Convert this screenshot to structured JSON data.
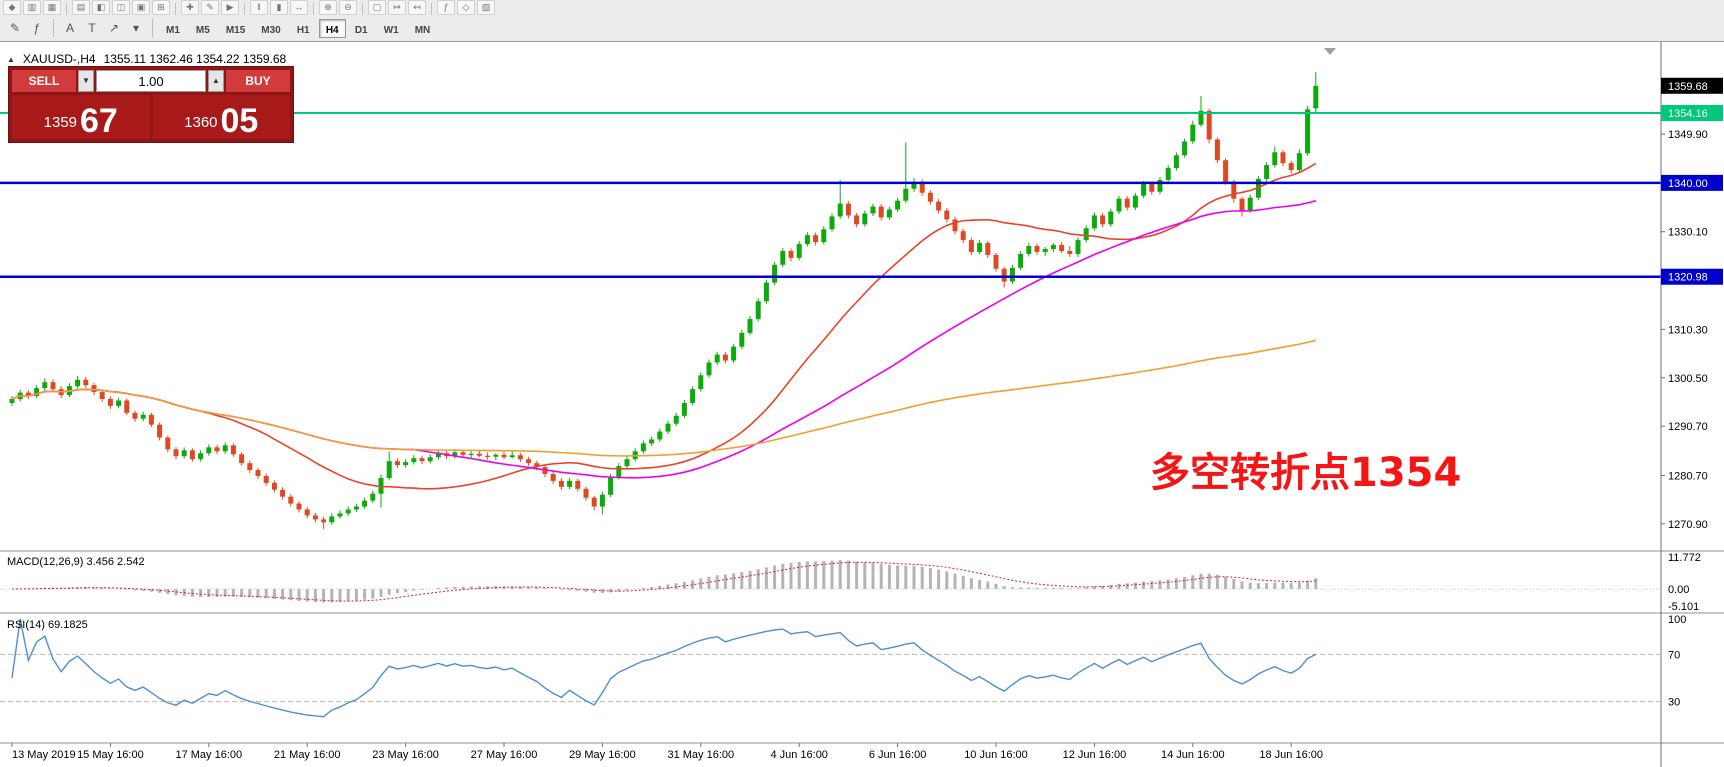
{
  "colors": {
    "candle_up": "#0caa0c",
    "candle_down": "#dd4a22",
    "ma_fast": "#e8442a",
    "ma_mid": "#ee00ee",
    "ma_slow": "#f0a030",
    "line_green": "#00c97c",
    "line_blue": "#0000cd",
    "rsi": "#4f8fd0",
    "macd_hist": "#b4b4b4",
    "macd_signal": "#d42222",
    "annotation": "#f51515",
    "current_price_box": "#000000"
  },
  "toolbar": {
    "row1_icons": [
      {
        "name": "metaquotes-logo-icon",
        "glyph": "◆"
      },
      {
        "name": "new-chart-icon",
        "glyph": "▥"
      },
      {
        "name": "chart-profiles-icon",
        "glyph": "▦"
      },
      {
        "sep": true
      },
      {
        "name": "market-watch-icon",
        "glyph": "▤"
      },
      {
        "name": "data-window-icon",
        "glyph": "◧"
      },
      {
        "name": "navigator-icon",
        "glyph": "◫"
      },
      {
        "name": "terminal-icon",
        "glyph": "▣"
      },
      {
        "name": "strategy-tester-icon",
        "glyph": "⊞"
      },
      {
        "sep": true
      },
      {
        "name": "new-order-icon",
        "glyph": "✚"
      },
      {
        "name": "metaeditor-icon",
        "glyph": "✎"
      },
      {
        "name": "autotrading-icon",
        "glyph": "▶"
      },
      {
        "sep": true
      },
      {
        "name": "bar-chart-icon",
        "glyph": "‖"
      },
      {
        "name": "candlestick-chart-icon",
        "glyph": "▮"
      },
      {
        "name": "line-chart-icon",
        "glyph": "↔"
      },
      {
        "sep": true
      },
      {
        "name": "zoom-in-icon",
        "glyph": "⊕"
      },
      {
        "name": "zoom-out-icon",
        "glyph": "⊖"
      },
      {
        "sep": true
      },
      {
        "name": "tile-windows-icon",
        "glyph": "▢"
      },
      {
        "name": "auto-scroll-icon",
        "glyph": "↦"
      },
      {
        "name": "chart-shift-icon",
        "glyph": "↤"
      },
      {
        "sep": true
      },
      {
        "name": "indicators-icon",
        "glyph": "ƒ"
      },
      {
        "name": "periods-icon",
        "glyph": "◇"
      },
      {
        "name": "templates-icon",
        "glyph": "▧"
      }
    ],
    "row2_icons": [
      {
        "name": "expert-advisors-icon",
        "glyph": "✎"
      },
      {
        "name": "indicator-list-icon",
        "glyph": "ƒ"
      },
      {
        "sep": true
      },
      {
        "name": "text-label-tool-icon",
        "glyph": "A"
      },
      {
        "name": "text-tool-icon",
        "glyph": "T"
      },
      {
        "name": "drawing-tools-icon",
        "glyph": "↗"
      },
      {
        "name": "drawing-tools-dropdown-icon",
        "glyph": "▾"
      },
      {
        "sep": true
      }
    ],
    "timeframes": [
      {
        "label": "M1"
      },
      {
        "label": "M5"
      },
      {
        "label": "M15"
      },
      {
        "label": "M30"
      },
      {
        "label": "H1"
      },
      {
        "label": "H4",
        "active": true
      },
      {
        "label": "D1"
      },
      {
        "label": "W1"
      },
      {
        "label": "MN"
      }
    ]
  },
  "chart_header": {
    "collapse_icon": "▲",
    "symbol": "XAUUSD-,H4",
    "ohlc": "1355.11 1362.46 1354.22 1359.68"
  },
  "trade_panel": {
    "sell_label": "SELL",
    "buy_label": "BUY",
    "volume": "1.00",
    "sell_dropdown_glyph": "▼",
    "volume_up_glyph": "▲",
    "bid_small": "1359",
    "bid_big": "67",
    "ask_small": "1360",
    "ask_big": "05"
  },
  "annotation": {
    "text": "多空转折点1354"
  },
  "price_axis": [
    {
      "text": "1359.68",
      "price": 1359.68,
      "type": "current"
    },
    {
      "text": "1354.16",
      "price": 1354.16,
      "type": "line-green"
    },
    {
      "text": "1349.90",
      "price": 1349.9,
      "type": "tick"
    },
    {
      "text": "1340.00",
      "price": 1340.0,
      "type": "line-blue"
    },
    {
      "text": "1330.10",
      "price": 1330.1,
      "type": "tick"
    },
    {
      "text": "1320.98",
      "price": 1320.98,
      "type": "line-blue"
    },
    {
      "text": "1310.30",
      "price": 1310.3,
      "type": "tick"
    },
    {
      "text": "1300.50",
      "price": 1300.5,
      "type": "tick"
    },
    {
      "text": "1290.70",
      "price": 1290.7,
      "type": "tick"
    },
    {
      "text": "1280.70",
      "price": 1280.7,
      "type": "tick"
    },
    {
      "text": "1270.90",
      "price": 1270.9,
      "type": "tick"
    }
  ],
  "chart_data": {
    "type": "candlestick",
    "title": "XAUUSD-,H4",
    "y_range": [
      1266,
      1364.5
    ],
    "x_label_every": 12,
    "x_labels": [
      "13 May 2019",
      "15 May 16:00",
      "17 May 16:00",
      "21 May 16:00",
      "23 May 16:00",
      "27 May 16:00",
      "29 May 16:00",
      "31 May 16:00",
      "4 Jun 16:00",
      "6 Jun 16:00",
      "10 Jun 16:00",
      "12 Jun 16:00",
      "14 Jun 16:00",
      "18 Jun 16:00"
    ],
    "overlays": {
      "moving_averages": [
        {
          "period": 24,
          "color": "#e8442a"
        },
        {
          "period": 50,
          "color": "#ee00ee"
        },
        {
          "period": 150,
          "color": "#f0a030"
        }
      ],
      "horizontal_lines": [
        {
          "price": 1354.16,
          "label": "1354.16",
          "color": "#00c97c",
          "width": 2
        },
        {
          "price": 1340.0,
          "label": "1340.00",
          "color": "#0000cd",
          "width": 2.5
        },
        {
          "price": 1320.98,
          "label": "1320.98",
          "color": "#0000cd",
          "width": 2.5
        }
      ],
      "current_price": {
        "value": 1359.68,
        "label": "1359.68"
      }
    },
    "sub_panels": [
      {
        "type": "macd",
        "label": "MACD(12,26,9) 3.456 2.542",
        "params": [
          12,
          26,
          9
        ],
        "values_shown": [
          3.456,
          2.542
        ],
        "axis_labels": [
          "11.772",
          "0.00",
          "-5.101"
        ]
      },
      {
        "type": "rsi",
        "label": "RSI(14) 69.1825",
        "period": 14,
        "current": 69.1825,
        "levels": [
          70,
          30
        ],
        "axis_labels": [
          "100",
          "70",
          "30"
        ]
      }
    ],
    "last_candle_ohlc": {
      "open": 1355.11,
      "high": 1362.46,
      "low": 1354.22,
      "close": 1359.68
    },
    "candles": [
      [
        1295.4,
        1296.8,
        1294.8,
        1296.2
      ],
      [
        1296.2,
        1298.1,
        1295.7,
        1297.5
      ],
      [
        1297.5,
        1298.0,
        1296.2,
        1296.8
      ],
      [
        1296.8,
        1299.0,
        1296.4,
        1298.4
      ],
      [
        1298.4,
        1300.4,
        1297.9,
        1299.6
      ],
      [
        1299.6,
        1300.2,
        1297.6,
        1298.2
      ],
      [
        1298.2,
        1298.8,
        1296.4,
        1297.0
      ],
      [
        1297.0,
        1299.4,
        1296.6,
        1298.8
      ],
      [
        1298.8,
        1300.9,
        1298.3,
        1300.1
      ],
      [
        1300.1,
        1300.7,
        1298.4,
        1299.0
      ],
      [
        1299.0,
        1299.5,
        1297.0,
        1297.6
      ],
      [
        1297.6,
        1298.1,
        1295.6,
        1296.2
      ],
      [
        1296.2,
        1296.7,
        1294.2,
        1294.8
      ],
      [
        1294.8,
        1296.5,
        1294.3,
        1295.9
      ],
      [
        1295.9,
        1296.3,
        1292.9,
        1293.4
      ],
      [
        1293.4,
        1293.9,
        1291.6,
        1292.2
      ],
      [
        1292.2,
        1293.6,
        1291.7,
        1293.0
      ],
      [
        1293.0,
        1293.4,
        1290.5,
        1291.0
      ],
      [
        1291.0,
        1291.4,
        1287.8,
        1288.4
      ],
      [
        1288.4,
        1288.8,
        1285.4,
        1286.0
      ],
      [
        1286.0,
        1286.5,
        1284.0,
        1284.6
      ],
      [
        1284.6,
        1286.4,
        1284.1,
        1285.8
      ],
      [
        1285.8,
        1286.2,
        1283.5,
        1284.0
      ],
      [
        1284.0,
        1285.8,
        1283.5,
        1285.2
      ],
      [
        1285.2,
        1287.0,
        1284.7,
        1286.4
      ],
      [
        1286.4,
        1286.9,
        1285.0,
        1285.6
      ],
      [
        1285.6,
        1287.4,
        1285.1,
        1286.8
      ],
      [
        1286.8,
        1287.2,
        1284.5,
        1285.0
      ],
      [
        1285.0,
        1285.4,
        1282.7,
        1283.2
      ],
      [
        1283.2,
        1283.7,
        1281.2,
        1281.8
      ],
      [
        1281.8,
        1282.3,
        1280.0,
        1280.6
      ],
      [
        1280.6,
        1281.1,
        1278.6,
        1279.2
      ],
      [
        1279.2,
        1279.7,
        1277.2,
        1277.8
      ],
      [
        1277.8,
        1278.3,
        1275.8,
        1276.4
      ],
      [
        1276.4,
        1276.9,
        1274.4,
        1275.0
      ],
      [
        1275.0,
        1275.5,
        1273.2,
        1273.8
      ],
      [
        1273.8,
        1274.3,
        1272.0,
        1272.6
      ],
      [
        1272.6,
        1273.1,
        1271.2,
        1271.8
      ],
      [
        1271.8,
        1272.3,
        1269.8,
        1271.2
      ],
      [
        1271.2,
        1273.0,
        1270.7,
        1272.4
      ],
      [
        1272.4,
        1273.6,
        1271.9,
        1273.0
      ],
      [
        1273.0,
        1274.4,
        1272.5,
        1273.8
      ],
      [
        1273.8,
        1275.0,
        1273.3,
        1274.4
      ],
      [
        1274.4,
        1276.2,
        1273.9,
        1275.6
      ],
      [
        1275.6,
        1277.6,
        1275.1,
        1277.0
      ],
      [
        1277.0,
        1280.9,
        1274.2,
        1280.2
      ],
      [
        1280.2,
        1285.6,
        1279.7,
        1283.6
      ],
      [
        1283.6,
        1284.2,
        1282.2,
        1282.8
      ],
      [
        1282.8,
        1284.0,
        1282.3,
        1283.4
      ],
      [
        1283.4,
        1284.8,
        1282.9,
        1284.2
      ],
      [
        1284.2,
        1284.7,
        1283.0,
        1283.6
      ],
      [
        1283.6,
        1285.0,
        1283.1,
        1284.4
      ],
      [
        1284.4,
        1285.8,
        1283.9,
        1285.2
      ],
      [
        1285.2,
        1285.7,
        1284.0,
        1284.6
      ],
      [
        1284.6,
        1286.0,
        1284.1,
        1285.4
      ],
      [
        1285.4,
        1285.9,
        1284.3,
        1284.9
      ],
      [
        1284.9,
        1285.6,
        1284.2,
        1285.1
      ],
      [
        1285.1,
        1285.8,
        1284.4,
        1284.7
      ],
      [
        1284.7,
        1285.4,
        1283.9,
        1284.5
      ],
      [
        1284.5,
        1285.2,
        1283.8,
        1284.9
      ],
      [
        1284.9,
        1285.5,
        1284.0,
        1284.4
      ],
      [
        1284.4,
        1285.9,
        1284.2,
        1284.8
      ],
      [
        1284.8,
        1285.3,
        1283.4,
        1284.0
      ],
      [
        1284.0,
        1284.5,
        1282.6,
        1283.2
      ],
      [
        1283.2,
        1283.7,
        1281.8,
        1282.4
      ],
      [
        1282.4,
        1282.9,
        1280.4,
        1281.0
      ],
      [
        1281.0,
        1281.5,
        1279.0,
        1279.6
      ],
      [
        1279.6,
        1280.1,
        1277.8,
        1278.4
      ],
      [
        1278.4,
        1280.2,
        1277.9,
        1279.6
      ],
      [
        1279.6,
        1280.0,
        1277.4,
        1278.0
      ],
      [
        1278.0,
        1278.4,
        1275.6,
        1276.2
      ],
      [
        1276.2,
        1276.6,
        1273.6,
        1274.4
      ],
      [
        1274.4,
        1277.4,
        1272.8,
        1276.8
      ],
      [
        1276.8,
        1281.0,
        1276.3,
        1280.4
      ],
      [
        1280.4,
        1283.2,
        1279.9,
        1282.6
      ],
      [
        1282.6,
        1284.6,
        1282.1,
        1284.0
      ],
      [
        1284.0,
        1286.2,
        1283.5,
        1285.6
      ],
      [
        1285.6,
        1287.8,
        1285.1,
        1287.2
      ],
      [
        1287.2,
        1288.6,
        1286.7,
        1288.0
      ],
      [
        1288.0,
        1290.2,
        1287.5,
        1289.6
      ],
      [
        1289.6,
        1291.8,
        1289.1,
        1291.2
      ],
      [
        1291.2,
        1293.4,
        1290.7,
        1292.8
      ],
      [
        1292.8,
        1296.0,
        1292.3,
        1295.4
      ],
      [
        1295.4,
        1298.8,
        1294.9,
        1298.2
      ],
      [
        1298.2,
        1301.6,
        1297.7,
        1301.0
      ],
      [
        1301.0,
        1304.2,
        1300.5,
        1303.6
      ],
      [
        1303.6,
        1305.8,
        1303.1,
        1305.2
      ],
      [
        1305.2,
        1305.7,
        1303.4,
        1304.0
      ],
      [
        1304.0,
        1307.4,
        1303.5,
        1306.8
      ],
      [
        1306.8,
        1310.2,
        1306.3,
        1309.6
      ],
      [
        1309.6,
        1313.0,
        1309.1,
        1312.4
      ],
      [
        1312.4,
        1316.6,
        1311.9,
        1316.0
      ],
      [
        1316.0,
        1320.4,
        1315.5,
        1319.8
      ],
      [
        1319.8,
        1324.0,
        1319.3,
        1323.4
      ],
      [
        1323.4,
        1326.8,
        1322.9,
        1326.2
      ],
      [
        1326.2,
        1326.7,
        1324.1,
        1324.8
      ],
      [
        1324.8,
        1328.2,
        1324.3,
        1327.6
      ],
      [
        1327.6,
        1330.0,
        1327.1,
        1329.4
      ],
      [
        1329.4,
        1329.9,
        1327.3,
        1328.0
      ],
      [
        1328.0,
        1331.2,
        1327.5,
        1330.6
      ],
      [
        1330.6,
        1333.8,
        1330.1,
        1333.2
      ],
      [
        1333.2,
        1340.6,
        1332.7,
        1335.8
      ],
      [
        1335.8,
        1336.3,
        1332.8,
        1333.4
      ],
      [
        1333.4,
        1333.9,
        1331.0,
        1331.6
      ],
      [
        1331.6,
        1334.4,
        1331.1,
        1333.8
      ],
      [
        1333.8,
        1335.8,
        1333.3,
        1335.2
      ],
      [
        1335.2,
        1335.7,
        1332.4,
        1333.0
      ],
      [
        1333.0,
        1335.2,
        1332.5,
        1334.6
      ],
      [
        1334.6,
        1337.0,
        1334.1,
        1336.4
      ],
      [
        1336.4,
        1348.2,
        1335.9,
        1338.8
      ],
      [
        1338.8,
        1341.0,
        1338.2,
        1340.2
      ],
      [
        1340.2,
        1340.7,
        1337.4,
        1338.0
      ],
      [
        1338.0,
        1338.5,
        1335.6,
        1336.2
      ],
      [
        1336.2,
        1336.7,
        1333.8,
        1334.4
      ],
      [
        1334.4,
        1334.9,
        1332.0,
        1332.6
      ],
      [
        1332.6,
        1333.1,
        1329.6,
        1330.2
      ],
      [
        1330.2,
        1330.7,
        1327.8,
        1328.4
      ],
      [
        1328.4,
        1328.9,
        1325.4,
        1326.0
      ],
      [
        1326.0,
        1328.4,
        1325.5,
        1327.8
      ],
      [
        1327.8,
        1328.2,
        1324.8,
        1325.4
      ],
      [
        1325.4,
        1325.8,
        1322.0,
        1322.6
      ],
      [
        1322.6,
        1323.0,
        1318.8,
        1320.0
      ],
      [
        1320.0,
        1323.4,
        1319.5,
        1322.8
      ],
      [
        1322.8,
        1326.2,
        1322.3,
        1325.6
      ],
      [
        1325.6,
        1327.8,
        1325.1,
        1327.2
      ],
      [
        1327.2,
        1327.7,
        1325.4,
        1326.0
      ],
      [
        1326.0,
        1327.0,
        1325.2,
        1326.6
      ],
      [
        1326.6,
        1327.8,
        1326.0,
        1327.4
      ],
      [
        1327.4,
        1328.0,
        1325.8,
        1326.2
      ],
      [
        1326.2,
        1327.2,
        1325.0,
        1325.6
      ],
      [
        1325.6,
        1329.0,
        1325.0,
        1328.4
      ],
      [
        1328.4,
        1331.4,
        1327.9,
        1330.8
      ],
      [
        1330.8,
        1334.0,
        1330.3,
        1333.4
      ],
      [
        1333.4,
        1333.9,
        1331.0,
        1331.6
      ],
      [
        1331.6,
        1334.8,
        1331.1,
        1334.2
      ],
      [
        1334.2,
        1337.4,
        1333.7,
        1336.8
      ],
      [
        1336.8,
        1337.3,
        1334.4,
        1335.0
      ],
      [
        1335.0,
        1338.0,
        1334.5,
        1337.4
      ],
      [
        1337.4,
        1340.4,
        1336.9,
        1339.8
      ],
      [
        1339.8,
        1340.3,
        1337.6,
        1338.2
      ],
      [
        1338.2,
        1341.2,
        1337.7,
        1340.6
      ],
      [
        1340.6,
        1343.6,
        1340.1,
        1343.0
      ],
      [
        1343.0,
        1346.2,
        1342.5,
        1345.6
      ],
      [
        1345.6,
        1349.0,
        1345.1,
        1348.4
      ],
      [
        1348.4,
        1352.6,
        1347.9,
        1351.8
      ],
      [
        1351.8,
        1357.6,
        1351.3,
        1354.6
      ],
      [
        1354.6,
        1355.0,
        1348.0,
        1348.8
      ],
      [
        1348.8,
        1349.2,
        1344.0,
        1344.6
      ],
      [
        1344.6,
        1345.0,
        1339.6,
        1340.2
      ],
      [
        1340.2,
        1340.6,
        1336.0,
        1336.8
      ],
      [
        1336.8,
        1337.2,
        1333.2,
        1334.4
      ],
      [
        1334.4,
        1337.6,
        1333.9,
        1337.0
      ],
      [
        1337.0,
        1341.4,
        1336.5,
        1340.8
      ],
      [
        1340.8,
        1344.2,
        1340.3,
        1343.6
      ],
      [
        1343.6,
        1347.4,
        1343.1,
        1346.2
      ],
      [
        1346.2,
        1346.7,
        1343.4,
        1344.0
      ],
      [
        1344.0,
        1344.5,
        1341.9,
        1342.6
      ],
      [
        1342.6,
        1346.8,
        1342.1,
        1346.0
      ],
      [
        1346.0,
        1355.6,
        1345.5,
        1354.9
      ],
      [
        1355.11,
        1362.46,
        1354.22,
        1359.68
      ]
    ]
  }
}
